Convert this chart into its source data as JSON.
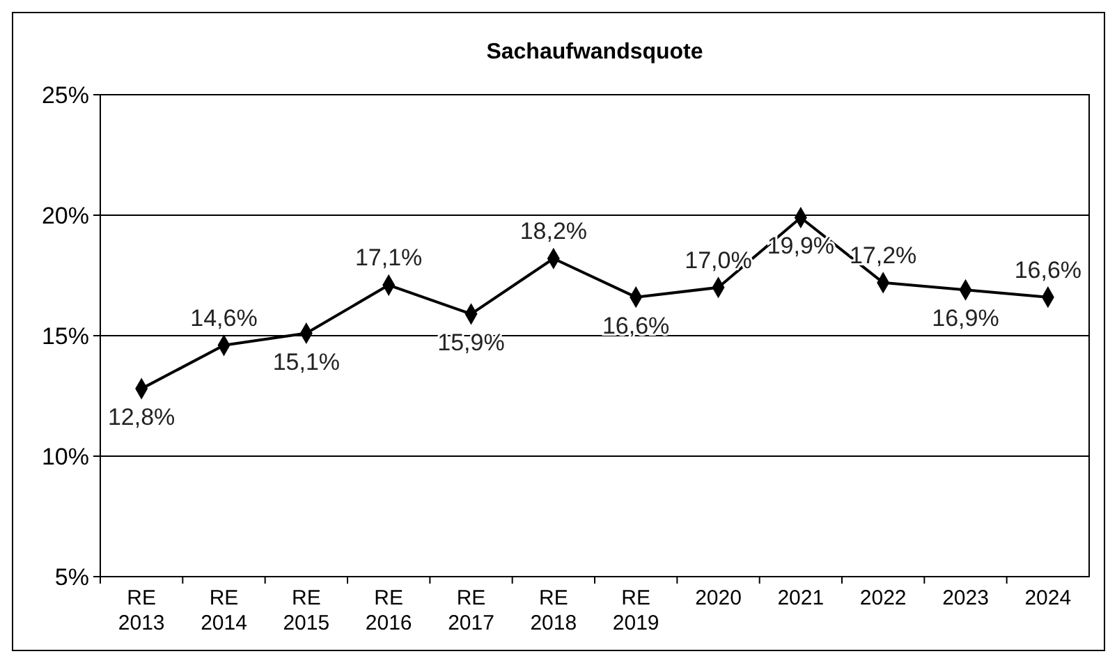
{
  "chart_data": {
    "type": "line",
    "title": "Sachaufwandsquote",
    "categories": [
      "RE\n2013",
      "RE\n2014",
      "RE\n2015",
      "RE\n2016",
      "RE\n2017",
      "RE\n2018",
      "RE\n2019",
      "2020",
      "2021",
      "2022",
      "2023",
      "2024"
    ],
    "series": [
      {
        "color": "#000000",
        "values": [
          12.8,
          14.6,
          15.1,
          17.1,
          15.9,
          18.2,
          16.6,
          17.0,
          19.9,
          17.2,
          16.9,
          16.6
        ],
        "value_labels": [
          "12,8%",
          "14,6%",
          "15,1%",
          "17,1%",
          "15,9%",
          "18,2%",
          "16,6%",
          "17,0%",
          "19,9%",
          "17,2%",
          "16,9%",
          "16,6%"
        ]
      }
    ],
    "ylim": [
      5,
      25
    ],
    "yticks": [
      {
        "value": 5,
        "label": "5%"
      },
      {
        "value": 10,
        "label": "10%"
      },
      {
        "value": 15,
        "label": "15%"
      },
      {
        "value": 20,
        "label": "20%"
      },
      {
        "value": 25,
        "label": "25%"
      }
    ],
    "grid": "y",
    "marker": "diamond",
    "line_style": "solid"
  }
}
